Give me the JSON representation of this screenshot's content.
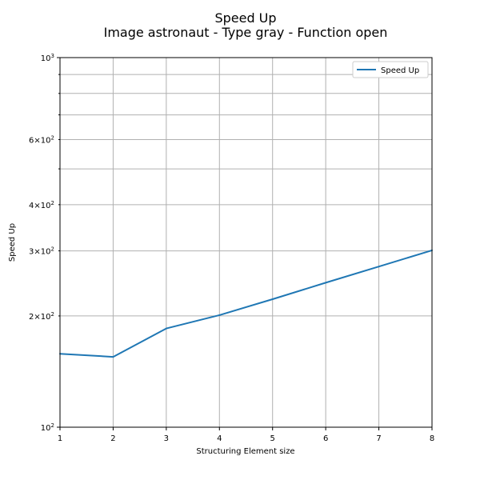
{
  "chart_data": {
    "type": "line",
    "title": "Speed Up",
    "subtitle": "Image astronaut - Type gray - Function open",
    "xlabel": "Structuring Element size",
    "ylabel": "Speed Up",
    "x": [
      1,
      2,
      3,
      4,
      5,
      6,
      7,
      8
    ],
    "series": [
      {
        "name": "Speed Up",
        "color": "#1f77b4",
        "values": [
          158,
          155,
          185,
          201,
          222,
          246,
          272,
          301
        ]
      }
    ],
    "xlim": [
      1,
      8
    ],
    "ylim": [
      100,
      1000
    ],
    "yscale": "log",
    "grid": true,
    "legend_position": "top-right",
    "x_ticks": [
      "1",
      "2",
      "3",
      "4",
      "5",
      "6",
      "7",
      "8"
    ],
    "y_major_ticks": [
      {
        "value": 100,
        "base": "10",
        "exp": "2"
      },
      {
        "value": 1000,
        "base": "10",
        "exp": "3"
      }
    ],
    "y_minor_ticks": [
      {
        "value": 200,
        "mant": "2",
        "exp": "2"
      },
      {
        "value": 300,
        "mant": "3",
        "exp": "2"
      },
      {
        "value": 400,
        "mant": "4",
        "exp": "2"
      },
      {
        "value": 600,
        "mant": "6",
        "exp": "2"
      }
    ],
    "y_minor_unlabeled": [
      500,
      700,
      800,
      900
    ]
  }
}
